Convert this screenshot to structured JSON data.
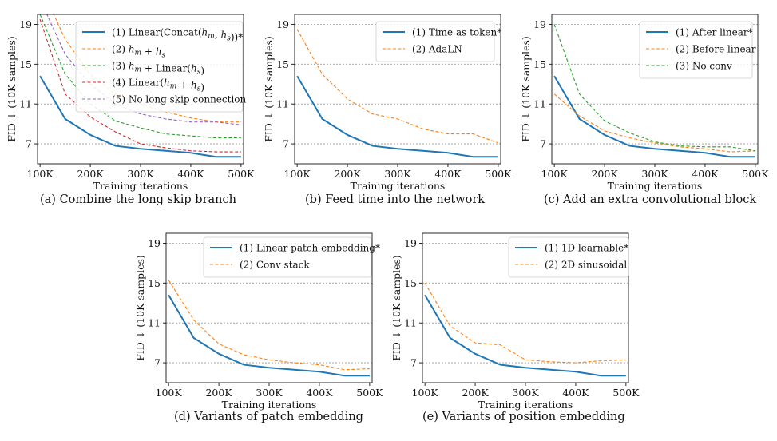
{
  "colors": {
    "blue": "#1f77b4",
    "orange": "#ff7f0e",
    "green": "#2ca02c",
    "red": "#d62728",
    "purple": "#9467bd"
  },
  "chart_data": [
    {
      "type": "line",
      "caption": "(a) Combine the long skip branch",
      "xlabel": "Training iterations",
      "ylabel": "FID ↓ (10K samples)",
      "x": [
        100000,
        150000,
        200000,
        250000,
        300000,
        350000,
        400000,
        450000,
        500000
      ],
      "xticks": [
        "100K",
        "200K",
        "300K",
        "400K",
        "500K"
      ],
      "yticks": [
        7,
        11,
        15,
        19
      ],
      "xlim": [
        95000,
        505000
      ],
      "ylim": [
        5,
        20
      ],
      "grid": "horizontal-dashed",
      "legend_position": "top-right",
      "series": [
        {
          "name": "(1) Linear(Concat(hm, hs))*",
          "color": "#1f77b4",
          "dash": "solid",
          "values": [
            13.8,
            9.5,
            7.9,
            6.8,
            6.5,
            6.3,
            6.1,
            5.7,
            5.7
          ]
        },
        {
          "name": "(2) hm + hs",
          "color": "#ff7f0e",
          "dash": "dashed",
          "values": [
            23.0,
            17.5,
            14.0,
            12.0,
            11.0,
            10.2,
            9.6,
            9.2,
            9.2
          ]
        },
        {
          "name": "(3) hm + Linear(hs)",
          "color": "#2ca02c",
          "dash": "dashed",
          "values": [
            20.0,
            14.0,
            11.0,
            9.3,
            8.6,
            8.0,
            7.8,
            7.6,
            7.6
          ]
        },
        {
          "name": "(4) Linear(hm + hs)",
          "color": "#d62728",
          "dash": "dashed",
          "values": [
            19.5,
            12.0,
            9.7,
            8.2,
            7.0,
            6.6,
            6.3,
            6.2,
            6.2
          ]
        },
        {
          "name": "(5) No long skip connection",
          "color": "#9467bd",
          "dash": "dashed",
          "values": [
            21.5,
            16.0,
            13.0,
            11.0,
            10.0,
            9.5,
            9.2,
            9.2,
            8.9
          ]
        }
      ]
    },
    {
      "type": "line",
      "caption": "(b) Feed time into the network",
      "xlabel": "Training iterations",
      "ylabel": "FID ↓ (10K samples)",
      "x": [
        100000,
        150000,
        200000,
        250000,
        300000,
        350000,
        400000,
        450000,
        500000
      ],
      "xticks": [
        "100K",
        "200K",
        "300K",
        "400K",
        "500K"
      ],
      "yticks": [
        7,
        11,
        15,
        19
      ],
      "xlim": [
        95000,
        505000
      ],
      "ylim": [
        5,
        20
      ],
      "grid": "horizontal-dashed",
      "legend_position": "top-right",
      "series": [
        {
          "name": "(1) Time as token*",
          "color": "#1f77b4",
          "dash": "solid",
          "values": [
            13.8,
            9.5,
            7.9,
            6.8,
            6.5,
            6.3,
            6.1,
            5.7,
            5.7
          ]
        },
        {
          "name": "(2) AdaLN",
          "color": "#ff7f0e",
          "dash": "dashed",
          "values": [
            18.5,
            14.0,
            11.5,
            10.0,
            9.5,
            8.5,
            8.0,
            8.0,
            7.1
          ]
        }
      ]
    },
    {
      "type": "line",
      "caption": "(c) Add an extra convolutional block",
      "xlabel": "Training iterations",
      "ylabel": "FID ↓ (10K samples)",
      "x": [
        100000,
        150000,
        200000,
        250000,
        300000,
        350000,
        400000,
        450000,
        500000
      ],
      "xticks": [
        "100K",
        "200K",
        "300K",
        "400K",
        "500K"
      ],
      "yticks": [
        7,
        11,
        15,
        19
      ],
      "xlim": [
        95000,
        505000
      ],
      "ylim": [
        5,
        20
      ],
      "grid": "horizontal-dashed",
      "legend_position": "top-right",
      "series": [
        {
          "name": "(1) After linear*",
          "color": "#1f77b4",
          "dash": "solid",
          "values": [
            13.8,
            9.5,
            7.9,
            6.8,
            6.5,
            6.3,
            6.1,
            5.7,
            5.7
          ]
        },
        {
          "name": "(2) Before linear",
          "color": "#ff7f0e",
          "dash": "dashed",
          "values": [
            12.0,
            9.8,
            8.3,
            7.6,
            7.1,
            6.7,
            6.5,
            6.2,
            6.3
          ]
        },
        {
          "name": "(3) No conv",
          "color": "#2ca02c",
          "dash": "dashed",
          "values": [
            19.0,
            12.0,
            9.3,
            8.1,
            7.2,
            6.8,
            6.7,
            6.7,
            6.3
          ]
        }
      ]
    },
    {
      "type": "line",
      "caption": "(d) Variants of patch embedding",
      "xlabel": "Training iterations",
      "ylabel": "FID ↓ (10K samples)",
      "x": [
        100000,
        150000,
        200000,
        250000,
        300000,
        350000,
        400000,
        450000,
        500000
      ],
      "xticks": [
        "100K",
        "200K",
        "300K",
        "400K",
        "500K"
      ],
      "yticks": [
        7,
        11,
        15,
        19
      ],
      "xlim": [
        95000,
        505000
      ],
      "ylim": [
        5,
        20
      ],
      "grid": "horizontal-dashed",
      "legend_position": "top-right",
      "series": [
        {
          "name": "(1) Linear patch embedding*",
          "color": "#1f77b4",
          "dash": "solid",
          "values": [
            13.8,
            9.5,
            7.9,
            6.8,
            6.5,
            6.3,
            6.1,
            5.7,
            5.7
          ]
        },
        {
          "name": "(2) Conv stack",
          "color": "#ff7f0e",
          "dash": "dashed",
          "values": [
            15.3,
            11.3,
            8.9,
            7.8,
            7.3,
            7.0,
            6.8,
            6.3,
            6.4
          ]
        }
      ]
    },
    {
      "type": "line",
      "caption": "(e) Variants of position embedding",
      "xlabel": "Training iterations",
      "ylabel": "FID ↓ (10K samples)",
      "x": [
        100000,
        150000,
        200000,
        250000,
        300000,
        350000,
        400000,
        450000,
        500000
      ],
      "xticks": [
        "100K",
        "200K",
        "300K",
        "400K",
        "500K"
      ],
      "yticks": [
        7,
        11,
        15,
        19
      ],
      "xlim": [
        95000,
        505000
      ],
      "ylim": [
        5,
        20
      ],
      "grid": "horizontal-dashed",
      "legend_position": "top-right",
      "series": [
        {
          "name": "(1) 1D learnable*",
          "color": "#1f77b4",
          "dash": "solid",
          "values": [
            13.8,
            9.5,
            7.9,
            6.8,
            6.5,
            6.3,
            6.1,
            5.7,
            5.7
          ]
        },
        {
          "name": "(2) 2D sinusoidal",
          "color": "#ff7f0e",
          "dash": "dashed",
          "values": [
            15.0,
            10.7,
            9.0,
            8.8,
            7.3,
            7.1,
            7.0,
            7.2,
            7.3
          ]
        }
      ]
    }
  ]
}
